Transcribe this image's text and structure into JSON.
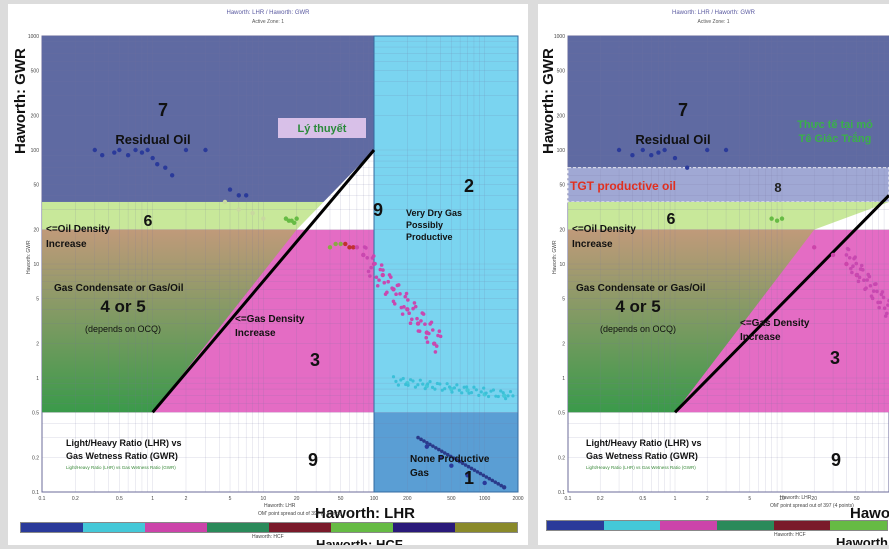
{
  "left": {
    "title": "Haworth: LHR / Haworth: GWR",
    "subtitle": "Active Zone: 1",
    "ylabel": "Haworth: GWR",
    "xlabel": "Haworth: LHR",
    "xlabel_small": "Haworth: LHR",
    "xnote": "OM' point spread out of 397 (4 points)",
    "hcf_label": "Haworth: HCF",
    "hcf_small": "Haworth: HCF",
    "ylabel_small": "Haworth: GWR",
    "callout": "Lý thuyết",
    "zones": {
      "z7_num": "7",
      "z7_name": "Residual Oil",
      "z6_num": "6",
      "z6_name1": "<=Oil Density",
      "z6_name2": "Increase",
      "z9_num": "9",
      "z2_num": "2",
      "z2_name1": "Very Dry Gas",
      "z2_name2": "Possibly",
      "z2_name3": "Productive",
      "z45_name": "Gas Condensate or Gas/Oil",
      "z45_num": "4 or 5",
      "z45_sub": "(depends on OCQ)",
      "z3_num": "3",
      "z3_name1": "<=Gas Density",
      "z3_name2": "Increase",
      "z9b_num": "9",
      "lhr1": "Light/Heavy Ratio (LHR) vs",
      "lhr2": "Gas Wetness Ratio (GWR)",
      "legend_small": "Light/Heavy Ratio (LHR) vs Gas Wetness Ratio (GWR)",
      "z1_num": "1",
      "z1_name1": "None Productive",
      "z1_name2": "Gas"
    }
  },
  "right": {
    "title": "Haworth: LHR / Haworth: GWR",
    "subtitle": "Active Zone: 1",
    "ylabel": "Haworth: GWR",
    "xlabel": "Hawo",
    "xlabel_small": "Haworth: LHR",
    "xnote": "OM' point spread out of 397 (4 points)",
    "hcf_label": "Haworth",
    "hcf_small": "Haworth: HCF",
    "ylabel_small": "Haworth: GWR",
    "callout1": "Thực tế tại mỏ",
    "callout2": "Tê Giác Trắng",
    "tgt": "TGT productive oil",
    "zones": {
      "z7_num": "7",
      "z7_name": "Residual Oil",
      "z8_num": "8",
      "z6_num": "6",
      "z6_name1": "<=Oil Density",
      "z6_name2": "Increase",
      "z45_name": "Gas Condensate or Gas/Oil",
      "z45_num": "4 or 5",
      "z45_sub": "(depends on OCQ)",
      "z3_num": "3",
      "z3_name1": "<=Gas Density",
      "z3_name2": "Increase",
      "z9b_num": "9",
      "lhr1": "Light/Heavy Ratio (LHR) vs",
      "lhr2": "Gas Wetness Ratio (GWR)",
      "legend_small": "Light/Heavy Ratio (LHR) vs Gas Wetness Ratio (GWR)"
    }
  },
  "chart_data": [
    {
      "type": "scatter",
      "title": "Haworth: LHR / Haworth: GWR",
      "xlabel": "Haworth: LHR",
      "ylabel": "Haworth: GWR",
      "xscale": "log",
      "yscale": "log",
      "xlim": [
        0.1,
        2000
      ],
      "ylim": [
        0.1,
        1000
      ],
      "xticks": [
        "0.1",
        "0.2",
        "0.5",
        "1",
        "2",
        "5",
        "10",
        "20",
        "50",
        "100",
        "200",
        "500",
        "1000",
        "2000"
      ],
      "yticks": [
        "0.1",
        "0.2",
        "0.5",
        "1",
        "2",
        "5",
        "10",
        "20",
        "50",
        "100",
        "200",
        "500",
        "1000"
      ],
      "series": [
        {
          "color": "#2a3a9a",
          "points": [
            [
              0.3,
              100
            ],
            [
              0.35,
              90
            ],
            [
              0.45,
              95
            ],
            [
              0.5,
              100
            ],
            [
              0.6,
              90
            ],
            [
              0.7,
              100
            ],
            [
              0.8,
              95
            ],
            [
              0.9,
              100
            ],
            [
              1.0,
              85
            ],
            [
              1.1,
              75
            ],
            [
              1.3,
              70
            ],
            [
              1.5,
              60
            ],
            [
              2.0,
              100
            ],
            [
              3.0,
              100
            ],
            [
              5.0,
              45
            ],
            [
              6.0,
              40
            ],
            [
              7.0,
              40
            ]
          ]
        },
        {
          "color": "#c8d8a0",
          "points": [
            [
              4.5,
              35
            ],
            [
              6,
              30
            ],
            [
              8,
              28
            ],
            [
              10,
              25
            ]
          ]
        },
        {
          "color": "#66bb44",
          "points": [
            [
              16,
              25
            ],
            [
              17,
              24
            ],
            [
              18,
              24
            ],
            [
              19,
              23
            ],
            [
              20,
              25
            ]
          ]
        },
        {
          "color": "#88aa44",
          "points": [
            [
              40,
              14
            ],
            [
              45,
              15
            ],
            [
              50,
              15
            ]
          ]
        },
        {
          "color": "#c03030",
          "points": [
            [
              55,
              15
            ],
            [
              60,
              14
            ],
            [
              65,
              14
            ]
          ]
        },
        {
          "color": "#cc44aa",
          "points": [
            [
              70,
              14
            ],
            [
              80,
              12
            ],
            [
              100,
              10
            ],
            [
              120,
              8
            ],
            [
              150,
              6
            ],
            [
              200,
              4
            ],
            [
              250,
              3
            ],
            [
              300,
              2.5
            ],
            [
              350,
              2
            ]
          ]
        },
        {
          "color": "#44c8d8",
          "points": [
            [
              200,
              0.9
            ],
            [
              300,
              0.85
            ],
            [
              500,
              0.8
            ],
            [
              700,
              0.78
            ],
            [
              1000,
              0.72
            ],
            [
              1500,
              0.7
            ]
          ]
        },
        {
          "color": "#2a3a9a",
          "points": [
            [
              300,
              0.25
            ],
            [
              400,
              0.2
            ],
            [
              500,
              0.17
            ],
            [
              700,
              0.14
            ],
            [
              1000,
              0.12
            ],
            [
              1500,
              0.11
            ]
          ]
        }
      ]
    },
    {
      "type": "scatter",
      "title": "Haworth: LHR / Haworth: GWR",
      "xlabel": "Haworth: LHR",
      "ylabel": "Haworth: GWR",
      "xscale": "log",
      "yscale": "log",
      "series": [
        {
          "color": "#2a3a9a",
          "points": [
            [
              0.3,
              100
            ],
            [
              0.4,
              90
            ],
            [
              0.5,
              100
            ],
            [
              0.6,
              90
            ],
            [
              0.7,
              95
            ],
            [
              0.8,
              100
            ],
            [
              1.0,
              85
            ],
            [
              1.3,
              70
            ],
            [
              2.0,
              100
            ],
            [
              3.0,
              100
            ]
          ]
        },
        {
          "color": "#66bb44",
          "points": [
            [
              8,
              25
            ],
            [
              9,
              24
            ],
            [
              10,
              25
            ]
          ]
        },
        {
          "color": "#cc44aa",
          "points": [
            [
              20,
              14
            ],
            [
              30,
              12
            ],
            [
              40,
              10
            ],
            [
              50,
              8
            ]
          ]
        }
      ]
    }
  ]
}
